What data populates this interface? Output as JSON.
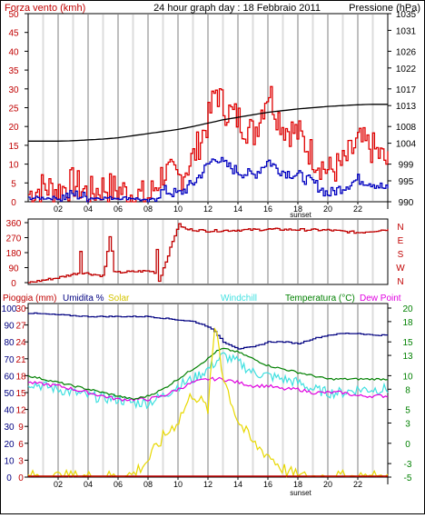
{
  "header": {
    "left_label": "Forza vento (kmh)",
    "center_label": "24 hour graph day : 18 Febbraio 2011",
    "right_label": "Pressione (hPa)"
  },
  "legend": {
    "rain": "Pioggia (mm)",
    "humidity": "Umidita %",
    "solar": "Solar",
    "windchill": "Windchill",
    "temperature": "Temperatura (°C)",
    "dewpoint": "Dew Point"
  },
  "x_ticks": [
    "02",
    "04",
    "06",
    "08",
    "10",
    "12",
    "14",
    "16",
    "18",
    "20",
    "22"
  ],
  "sunset_label": "sunset",
  "colors": {
    "wind_gust": "#e00000",
    "wind_avg": "#0000c0",
    "pressure": "#000000",
    "direction": "#c00000",
    "humidity": "#000080",
    "temperature": "#008000",
    "windchill": "#40e0e0",
    "dewpoint": "#e000e0",
    "solar": "#e8d800",
    "rain": "#c00000",
    "left_axis": "#c00000",
    "right_axis_green": "#008000"
  },
  "chart_data": [
    {
      "type": "line",
      "title": "24 hour graph day : 18 Febbraio 2011",
      "xlabel": "",
      "ylabel": "Forza vento (kmh)",
      "ylabel_right": "Pressione (hPa)",
      "x": [
        0,
        1,
        2,
        3,
        4,
        5,
        6,
        7,
        8,
        9,
        10,
        11,
        12,
        12.5,
        13,
        14,
        15,
        16,
        16.5,
        17,
        18,
        19,
        20,
        21,
        22,
        23,
        24
      ],
      "series": [
        {
          "name": "gust",
          "axis": "left",
          "values": [
            2,
            4,
            3,
            5,
            2,
            4,
            3,
            2,
            1,
            8,
            6,
            12,
            22,
            30,
            25,
            22,
            18,
            30,
            24,
            20,
            18,
            12,
            8,
            10,
            16,
            14,
            10
          ]
        },
        {
          "name": "avg",
          "axis": "left",
          "values": [
            1,
            1,
            1,
            2,
            1,
            1,
            1,
            1,
            0,
            3,
            2,
            5,
            10,
            12,
            10,
            8,
            7,
            11,
            9,
            8,
            7,
            5,
            2,
            4,
            6,
            5,
            3
          ]
        },
        {
          "name": "pressure",
          "axis": "right",
          "values": [
            1004.5,
            1004.5,
            1004.5,
            1004.6,
            1004.8,
            1005,
            1005.3,
            1005.8,
            1006.3,
            1006.8,
            1007.3,
            1008,
            1008.8,
            1009.2,
            1009.6,
            1010.2,
            1010.8,
            1011.4,
            1011.6,
            1011.8,
            1012.2,
            1012.5,
            1012.8,
            1013,
            1013.2,
            1013.3,
            1013.3
          ]
        }
      ],
      "ylim_left": [
        0,
        50
      ],
      "ylim_right": [
        990,
        1035
      ],
      "y_ticks_left": [
        0,
        5,
        10,
        15,
        20,
        25,
        30,
        35,
        40,
        45,
        50
      ],
      "y_ticks_right": [
        990,
        995,
        999,
        1004,
        1008,
        1013,
        1017,
        1022,
        1026,
        1031,
        1035
      ]
    },
    {
      "type": "line",
      "xlabel": "",
      "ylabel": "",
      "x": [
        0,
        2,
        3.4,
        3.5,
        3.6,
        5,
        5.5,
        5.6,
        5.7,
        8,
        8.5,
        8.6,
        8.7,
        10,
        10.5,
        12,
        16,
        20,
        22,
        24
      ],
      "series": [
        {
          "name": "direction",
          "values": [
            0,
            30,
            60,
            320,
            60,
            40,
            330,
            60,
            60,
            70,
            60,
            340,
            10,
            350,
            320,
            310,
            320,
            315,
            300,
            320
          ]
        }
      ],
      "ylim": [
        0,
        360
      ],
      "y_ticks": [
        0,
        90,
        180,
        270,
        360
      ],
      "compass_labels": [
        "N",
        "W",
        "S",
        "E",
        "N"
      ]
    },
    {
      "type": "line",
      "xlabel": "",
      "ylabel": "Pioggia (mm)",
      "x": [
        0,
        2,
        4,
        6,
        7,
        8,
        9,
        10,
        11,
        12,
        12.5,
        13,
        14,
        15,
        16,
        17,
        18,
        19,
        20,
        21,
        22,
        23,
        24
      ],
      "series": [
        {
          "name": "humidity",
          "axis": "humidity",
          "values": [
            97,
            96,
            95,
            95,
            95,
            95,
            94,
            93,
            92,
            89,
            85,
            80,
            76,
            77,
            80,
            80,
            79,
            82,
            84,
            85,
            85,
            84,
            84
          ]
        },
        {
          "name": "temperature",
          "axis": "temperature",
          "values": [
            10,
            9,
            8,
            7,
            6.5,
            7,
            8,
            9.5,
            11,
            12.5,
            13.5,
            14,
            13.5,
            12.5,
            11.5,
            11,
            10.5,
            10,
            9.5,
            9.5,
            9.5,
            9.5,
            9.5
          ]
        },
        {
          "name": "windchill",
          "axis": "temperature",
          "values": [
            9,
            8,
            7,
            6.5,
            6,
            6,
            7,
            8.5,
            9.5,
            11,
            12,
            13,
            12,
            10.5,
            10,
            9.5,
            9,
            8,
            7.5,
            7.5,
            8,
            8,
            8
          ]
        },
        {
          "name": "dewpoint",
          "axis": "temperature",
          "values": [
            9,
            8.5,
            7.5,
            6.5,
            6.5,
            6.5,
            7,
            8,
            9,
            9.5,
            9.5,
            9.5,
            9,
            8.5,
            8.5,
            8,
            8,
            7.5,
            7.5,
            7.5,
            7,
            7,
            7
          ]
        },
        {
          "name": "solar",
          "axis": "rain",
          "values": [
            0,
            0,
            0,
            0,
            0.5,
            3,
            7,
            10,
            15,
            12,
            28,
            18,
            10,
            6,
            4,
            1.5,
            0,
            0,
            0,
            0,
            0,
            0,
            0
          ]
        },
        {
          "name": "rain",
          "axis": "rain",
          "values": [
            0,
            0,
            0,
            0,
            0,
            0,
            0,
            0,
            0,
            0,
            0,
            0,
            0,
            0,
            0,
            0,
            0,
            0,
            0,
            0,
            0,
            0,
            0
          ]
        }
      ],
      "humidity_ticks": [
        0,
        10,
        20,
        30,
        40,
        50,
        60,
        70,
        80,
        90,
        100
      ],
      "rain_ticks": [
        0,
        3,
        6,
        9,
        12,
        15,
        18,
        21,
        24,
        27,
        30
      ],
      "temperature_ticks": [
        -5,
        -3,
        0,
        3,
        5,
        8,
        10,
        13,
        15,
        18,
        20
      ],
      "ylim_humidity": [
        0,
        100
      ],
      "ylim_rain": [
        0,
        30
      ],
      "ylim_temperature": [
        -5,
        20
      ]
    }
  ]
}
